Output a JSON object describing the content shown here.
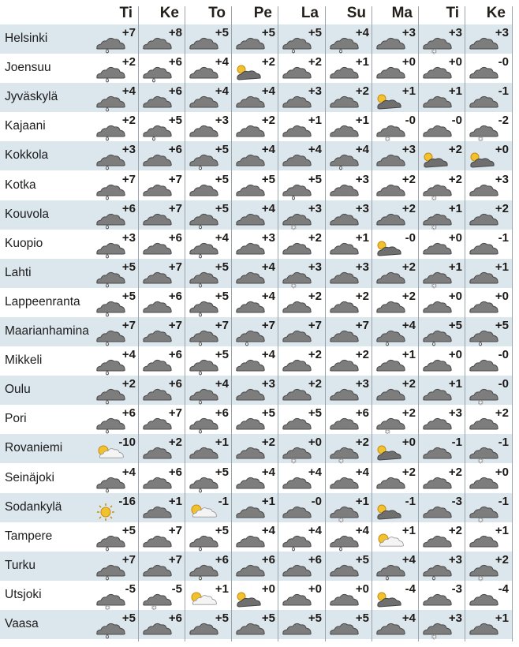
{
  "days": [
    "Ti",
    "Ke",
    "To",
    "Pe",
    "La",
    "Su",
    "Ma",
    "Ti",
    "Ke"
  ],
  "colors": {
    "row_shade": "#dce6ed",
    "cloud": "#7d7d7d",
    "sun": "#f2c12e"
  },
  "rows": [
    {
      "city": "Helsinki",
      "temps": [
        "+7",
        "+8",
        "+5",
        "+5",
        "+5",
        "+4",
        "+3",
        "+3",
        "+3"
      ],
      "icons": [
        "rain",
        "cloud",
        "cloud",
        "cloud",
        "rain",
        "rain",
        "cloud",
        "snow",
        "cloud"
      ]
    },
    {
      "city": "Joensuu",
      "temps": [
        "+2",
        "+6",
        "+4",
        "+2",
        "+2",
        "+1",
        "+0",
        "+0",
        "-0"
      ],
      "icons": [
        "rain",
        "rain",
        "cloud",
        "sun-cloud",
        "cloud",
        "cloud",
        "cloud",
        "cloud",
        "cloud"
      ]
    },
    {
      "city": "Jyväskylä",
      "temps": [
        "+4",
        "+6",
        "+4",
        "+4",
        "+3",
        "+2",
        "+1",
        "+1",
        "-1"
      ],
      "icons": [
        "rain",
        "cloud",
        "cloud",
        "cloud",
        "cloud",
        "cloud",
        "sun-cloud",
        "cloud",
        "cloud"
      ]
    },
    {
      "city": "Kajaani",
      "temps": [
        "+2",
        "+5",
        "+3",
        "+2",
        "+1",
        "+1",
        "-0",
        "-0",
        "-2"
      ],
      "icons": [
        "rain",
        "rain",
        "cloud",
        "cloud",
        "cloud",
        "cloud",
        "snow",
        "cloud",
        "snow"
      ]
    },
    {
      "city": "Kokkola",
      "temps": [
        "+3",
        "+6",
        "+5",
        "+4",
        "+4",
        "+4",
        "+3",
        "+2",
        "+0"
      ],
      "icons": [
        "rain",
        "cloud",
        "rain",
        "cloud",
        "cloud",
        "rain",
        "cloud",
        "sun-cloud",
        "sun-cloud"
      ]
    },
    {
      "city": "Kotka",
      "temps": [
        "+7",
        "+7",
        "+5",
        "+5",
        "+5",
        "+3",
        "+2",
        "+2",
        "+3"
      ],
      "icons": [
        "rain",
        "cloud",
        "cloud",
        "cloud",
        "rain",
        "cloud",
        "cloud",
        "snow",
        "cloud"
      ]
    },
    {
      "city": "Kouvola",
      "temps": [
        "+6",
        "+7",
        "+5",
        "+4",
        "+3",
        "+3",
        "+2",
        "+1",
        "+2"
      ],
      "icons": [
        "rain",
        "cloud",
        "rain",
        "cloud",
        "snow",
        "cloud",
        "cloud",
        "snow",
        "cloud"
      ]
    },
    {
      "city": "Kuopio",
      "temps": [
        "+3",
        "+6",
        "+4",
        "+3",
        "+2",
        "+1",
        "-0",
        "+0",
        "-1"
      ],
      "icons": [
        "rain",
        "cloud",
        "rain",
        "cloud",
        "cloud",
        "cloud",
        "sun-cloud",
        "cloud",
        "cloud"
      ]
    },
    {
      "city": "Lahti",
      "temps": [
        "+5",
        "+7",
        "+5",
        "+4",
        "+3",
        "+3",
        "+2",
        "+1",
        "+1"
      ],
      "icons": [
        "rain",
        "cloud",
        "rain",
        "cloud",
        "snow",
        "cloud",
        "cloud",
        "snow",
        "cloud"
      ]
    },
    {
      "city": "Lappeenranta",
      "temps": [
        "+5",
        "+6",
        "+5",
        "+4",
        "+2",
        "+2",
        "+2",
        "+0",
        "+0"
      ],
      "icons": [
        "rain",
        "cloud",
        "rain",
        "cloud",
        "cloud",
        "cloud",
        "cloud",
        "cloud",
        "cloud"
      ]
    },
    {
      "city": "Maarianhamina",
      "temps": [
        "+7",
        "+7",
        "+7",
        "+7",
        "+7",
        "+7",
        "+4",
        "+5",
        "+5"
      ],
      "icons": [
        "rain",
        "cloud",
        "rain",
        "rain",
        "cloud",
        "cloud",
        "rain",
        "rain",
        "rain"
      ]
    },
    {
      "city": "Mikkeli",
      "temps": [
        "+4",
        "+6",
        "+5",
        "+4",
        "+2",
        "+2",
        "+1",
        "+0",
        "-0"
      ],
      "icons": [
        "rain",
        "cloud",
        "rain",
        "cloud",
        "cloud",
        "cloud",
        "cloud",
        "cloud",
        "cloud"
      ]
    },
    {
      "city": "Oulu",
      "temps": [
        "+2",
        "+6",
        "+4",
        "+3",
        "+2",
        "+3",
        "+2",
        "+1",
        "-0"
      ],
      "icons": [
        "rain",
        "cloud",
        "rain",
        "cloud",
        "cloud",
        "cloud",
        "cloud",
        "cloud",
        "snow"
      ]
    },
    {
      "city": "Pori",
      "temps": [
        "+6",
        "+7",
        "+6",
        "+5",
        "+5",
        "+6",
        "+2",
        "+3",
        "+2"
      ],
      "icons": [
        "rain",
        "cloud",
        "rain",
        "cloud",
        "cloud",
        "cloud",
        "snow",
        "cloud",
        "cloud"
      ]
    },
    {
      "city": "Rovaniemi",
      "temps": [
        "-10",
        "+2",
        "+1",
        "+2",
        "+0",
        "+2",
        "+0",
        "-1",
        "-1"
      ],
      "icons": [
        "partly-sunny",
        "cloud",
        "cloud",
        "cloud",
        "snow",
        "snow",
        "sun-cloud",
        "cloud",
        "snow"
      ]
    },
    {
      "city": "Seinäjoki",
      "temps": [
        "+4",
        "+6",
        "+5",
        "+4",
        "+4",
        "+4",
        "+2",
        "+2",
        "+0"
      ],
      "icons": [
        "rain",
        "cloud",
        "rain",
        "cloud",
        "cloud",
        "cloud",
        "cloud",
        "cloud",
        "cloud"
      ]
    },
    {
      "city": "Sodankylä",
      "temps": [
        "-16",
        "+1",
        "-1",
        "+1",
        "-0",
        "+1",
        "-1",
        "-3",
        "-1"
      ],
      "icons": [
        "sun",
        "cloud",
        "partly-sunny",
        "cloud",
        "cloud",
        "snow",
        "sun-cloud",
        "cloud",
        "snow"
      ]
    },
    {
      "city": "Tampere",
      "temps": [
        "+5",
        "+7",
        "+5",
        "+4",
        "+4",
        "+4",
        "+1",
        "+2",
        "+1"
      ],
      "icons": [
        "rain",
        "cloud",
        "rain",
        "cloud",
        "rain",
        "rain",
        "partly-sunny",
        "cloud",
        "cloud"
      ]
    },
    {
      "city": "Turku",
      "temps": [
        "+7",
        "+7",
        "+6",
        "+6",
        "+6",
        "+5",
        "+4",
        "+3",
        "+2"
      ],
      "icons": [
        "rain",
        "cloud",
        "rain",
        "cloud",
        "cloud",
        "cloud",
        "rain",
        "rain",
        "snow"
      ]
    },
    {
      "city": "Utsjoki",
      "temps": [
        "-5",
        "-5",
        "+1",
        "+0",
        "+0",
        "+0",
        "-4",
        "-3",
        "-4"
      ],
      "icons": [
        "snow",
        "snow",
        "partly-sunny",
        "sun-cloud",
        "cloud",
        "cloud",
        "sun-cloud",
        "cloud",
        "cloud"
      ]
    },
    {
      "city": "Vaasa",
      "temps": [
        "+5",
        "+6",
        "+5",
        "+5",
        "+5",
        "+5",
        "+4",
        "+3",
        "+1"
      ],
      "icons": [
        "rain",
        "cloud",
        "cloud",
        "cloud",
        "cloud",
        "cloud",
        "cloud",
        "snow",
        "cloud"
      ]
    }
  ]
}
